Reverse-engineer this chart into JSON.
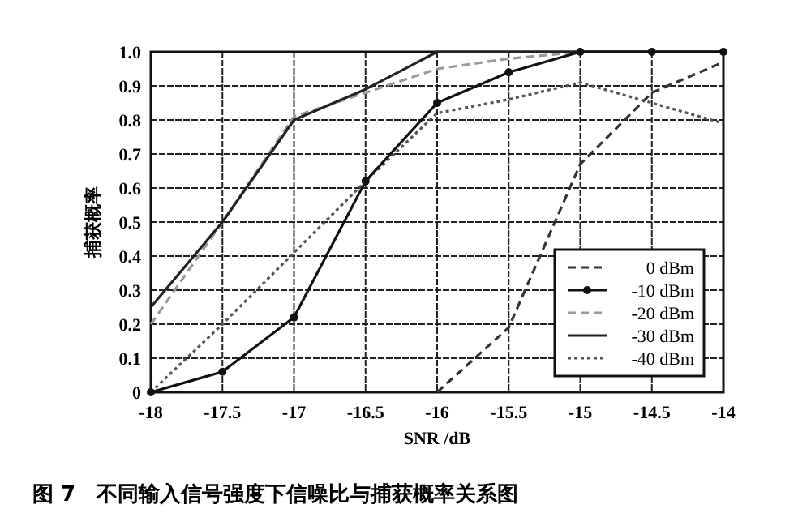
{
  "chart_data": {
    "type": "line",
    "xlabel": "SNR /dB",
    "ylabel": "捕获概率",
    "annotations": [
      "图 7　不同输入信号强度下信噪比与捕获概率关系图"
    ],
    "x": [
      -18,
      -17.5,
      -17,
      -16.5,
      -16,
      -15.5,
      -15,
      -14.5,
      -14
    ],
    "series": [
      {
        "name": "0 dBm",
        "color": "#333333",
        "line_style": "dashed",
        "marker": "none",
        "values": [
          null,
          null,
          null,
          null,
          0,
          0.19,
          0.67,
          0.88,
          0.97
        ]
      },
      {
        "name": "-10 dBm",
        "color": "#111111",
        "line_style": "solid",
        "marker": "circle",
        "values": [
          0,
          0.06,
          0.22,
          0.62,
          0.85,
          0.94,
          1.0,
          1.0,
          1.0
        ]
      },
      {
        "name": "-20 dBm",
        "color": "#999999",
        "line_style": "dashed",
        "marker": "none",
        "values": [
          0.2,
          0.5,
          0.81,
          0.88,
          0.95,
          0.98,
          1.0,
          1.0,
          1.0
        ]
      },
      {
        "name": "-30 dBm",
        "color": "#222222",
        "line_style": "solid",
        "marker": "none",
        "values": [
          0.25,
          0.5,
          0.8,
          0.89,
          1.0,
          1.0,
          1.0,
          1.0,
          1.0
        ]
      },
      {
        "name": "-40 dBm",
        "color": "#555555",
        "line_style": "dotted",
        "marker": "none",
        "values": [
          0,
          0.2,
          0.41,
          0.62,
          0.82,
          0.86,
          0.91,
          0.85,
          0.79
        ]
      }
    ],
    "xlim": [
      -18,
      -14
    ],
    "xticks": [
      -18,
      -17.5,
      -17,
      -16.5,
      -16,
      -15.5,
      -15,
      -14.5,
      -14
    ],
    "ylim": [
      0,
      1
    ],
    "yticks": [
      0,
      0.1,
      0.2,
      0.3,
      0.4,
      0.5,
      0.6,
      0.7,
      0.8,
      0.9,
      {
        "value": 1,
        "label": "1.0"
      }
    ],
    "grid": true,
    "legend": "bottom right"
  }
}
